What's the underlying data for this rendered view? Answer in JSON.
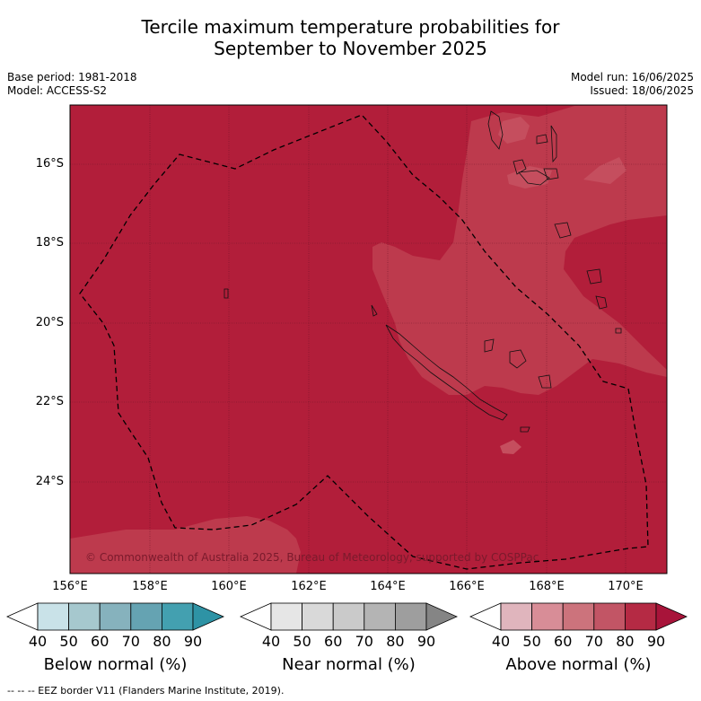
{
  "title_line1": "Tercile maximum temperature probabilities for",
  "title_line2": "September to November 2025",
  "base_period": "Base period: 1981-2018",
  "model": "Model: ACCESS-S2",
  "model_run": "Model run: 16/06/2025",
  "issued": "Issued: 18/06/2025",
  "copyright": "© Commonwealth of Australia 2025, Bureau of Meteorology, supported by COSPPac",
  "lat_labels": [
    "16°S",
    "18°S",
    "20°S",
    "22°S",
    "24°S"
  ],
  "lon_labels": [
    "156°E",
    "158°E",
    "160°E",
    "162°E",
    "164°E",
    "166°E",
    "168°E",
    "170°E"
  ],
  "colorbars": [
    {
      "title": "Below normal (%)",
      "ticks": [
        "40",
        "50",
        "60",
        "70",
        "80",
        "90"
      ],
      "colors": [
        "#ffffff",
        "#c9e2e8",
        "#a6c8ce",
        "#86b2bd",
        "#65a3b2",
        "#43a0b0",
        "#2e93a5"
      ]
    },
    {
      "title": "Near normal (%)",
      "ticks": [
        "40",
        "50",
        "60",
        "70",
        "80",
        "90"
      ],
      "colors": [
        "#ffffff",
        "#e6e6e6",
        "#d9d9d9",
        "#cacaca",
        "#b4b4b4",
        "#9e9e9e",
        "#858585"
      ]
    },
    {
      "title": "Above normal (%)",
      "ticks": [
        "40",
        "50",
        "60",
        "70",
        "80",
        "90"
      ],
      "colors": [
        "#ffffff",
        "#e0b5bd",
        "#d88d97",
        "#cc737c",
        "#c25565",
        "#b52a44",
        "#a8143a"
      ]
    }
  ],
  "map_colors": {
    "dominant": "#b21e3a",
    "lighter": "#bd3a4d",
    "lightest": "#c54e5e"
  },
  "footnote": "--  --  -- EEZ border V11 (Flanders Marine Institute, 2019)."
}
